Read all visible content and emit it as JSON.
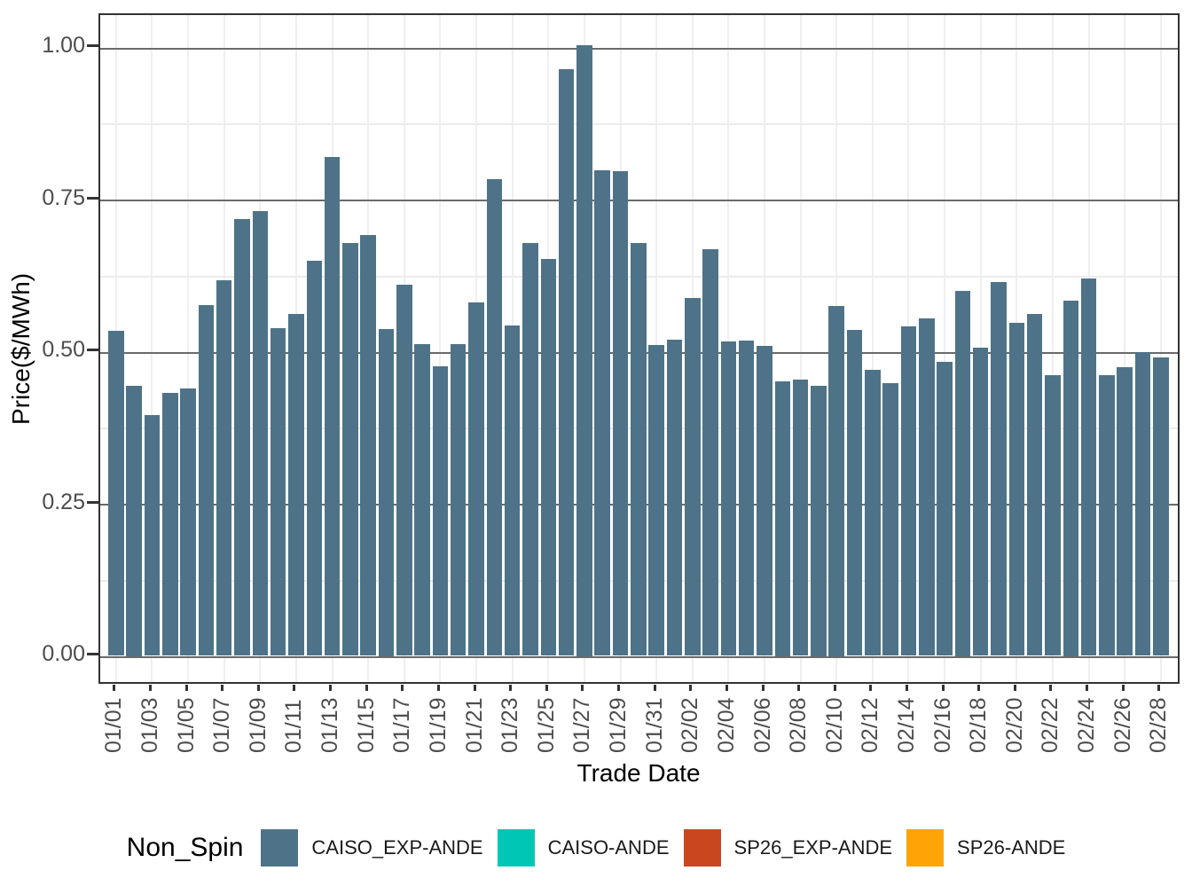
{
  "chart_data": {
    "type": "bar",
    "title": "",
    "xlabel": "Trade Date",
    "ylabel": "Price($/MWh)",
    "ylim": [
      0,
      1.05
    ],
    "grid": "horizontal major dark-gray, horizontal minor light-gray, vertical major light-gray at 2-day ticks",
    "legend_position": "bottom",
    "series_name": "CAISO_EXP-ANDE",
    "categories": [
      "01/01",
      "01/02",
      "01/03",
      "01/04",
      "01/05",
      "01/06",
      "01/07",
      "01/08",
      "01/09",
      "01/10",
      "01/11",
      "01/12",
      "01/13",
      "01/14",
      "01/15",
      "01/16",
      "01/17",
      "01/18",
      "01/19",
      "01/20",
      "01/21",
      "01/22",
      "01/23",
      "01/24",
      "01/25",
      "01/26",
      "01/27",
      "01/28",
      "01/29",
      "01/30",
      "01/31",
      "02/01",
      "02/02",
      "02/03",
      "02/04",
      "02/05",
      "02/06",
      "02/07",
      "02/08",
      "02/09",
      "02/10",
      "02/11",
      "02/12",
      "02/13",
      "02/14",
      "02/15",
      "02/16",
      "02/17",
      "02/18",
      "02/19",
      "02/20",
      "02/21",
      "02/22",
      "02/23",
      "02/24",
      "02/25",
      "02/26",
      "02/27",
      "02/28"
    ],
    "values": [
      0.534,
      0.444,
      0.396,
      0.432,
      0.44,
      0.577,
      0.617,
      0.718,
      0.731,
      0.539,
      0.562,
      0.649,
      0.82,
      0.679,
      0.692,
      0.538,
      0.61,
      0.512,
      0.476,
      0.513,
      0.581,
      0.784,
      0.543,
      0.679,
      0.653,
      0.965,
      1.004,
      0.798,
      0.797,
      0.679,
      0.511,
      0.52,
      0.589,
      0.668,
      0.517,
      0.519,
      0.51,
      0.452,
      0.454,
      0.444,
      0.576,
      0.536,
      0.47,
      0.448,
      0.542,
      0.555,
      0.483,
      0.6,
      0.507,
      0.615,
      0.547,
      0.562,
      0.462,
      0.584,
      0.62,
      0.462,
      0.474,
      0.5,
      0.491
    ],
    "x_tick_labels": [
      "01/01",
      "01/03",
      "01/05",
      "01/07",
      "01/09",
      "01/11",
      "01/13",
      "01/15",
      "01/17",
      "01/19",
      "01/21",
      "01/23",
      "01/25",
      "01/27",
      "01/29",
      "01/31",
      "02/02",
      "02/04",
      "02/06",
      "02/08",
      "02/10",
      "02/12",
      "02/14",
      "02/16",
      "02/18",
      "02/20",
      "02/22",
      "02/24",
      "02/26",
      "02/28"
    ],
    "y_tick_labels": [
      "0.00",
      "0.25",
      "0.50",
      "0.75",
      "1.00"
    ],
    "y_tick_values": [
      0,
      0.25,
      0.5,
      0.75,
      1.0
    ],
    "y_minor_values": [
      0.125,
      0.375,
      0.625,
      0.875
    ]
  },
  "legend": {
    "title": "Non_Spin",
    "entries": [
      {
        "label": "CAISO_EXP-ANDE",
        "color": "#4E7389"
      },
      {
        "label": "CAISO-ANDE",
        "color": "#00C7B5"
      },
      {
        "label": "SP26_EXP-ANDE",
        "color": "#C9461F"
      },
      {
        "label": "SP26-ANDE",
        "color": "#FFA405"
      }
    ]
  },
  "colors": {
    "bar": "#4E7389",
    "grid_major_y": "#6a6a6a",
    "grid_minor_y": "#ececec",
    "grid_major_x": "#efefef",
    "panel_border": "#333333",
    "axis_text": "#4d4d4d",
    "title_text": "#000000"
  }
}
